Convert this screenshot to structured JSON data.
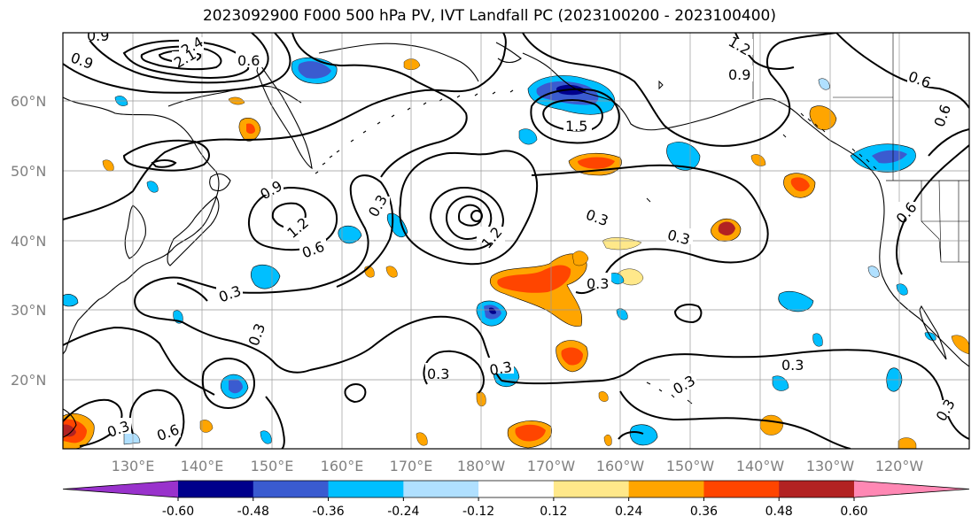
{
  "title": "2023092900 F000 500 hPa PV, IVT Landfall PC (2023100200 - 2023100400)",
  "lat_labels": [
    "60°N",
    "50°N",
    "40°N",
    "30°N",
    "20°N"
  ],
  "lon_labels": [
    "130°E",
    "140°E",
    "150°E",
    "160°E",
    "170°E",
    "180°W",
    "170°W",
    "160°W",
    "150°W",
    "140°W",
    "130°W",
    "120°W"
  ],
  "contour_labels": [
    "0.9",
    "2.4",
    "2.1",
    "1.2",
    "0.6",
    "0.9",
    "0.9",
    "1.2",
    "0.6",
    "0.3",
    "0.3",
    "0.3",
    "1.5",
    "0.3",
    "0.3",
    "0.3",
    "0.3",
    "0.3",
    "0.3",
    "0.3",
    "0.6",
    "0.3",
    "1.2",
    "0.9",
    "0.6",
    "0.6",
    "0.6",
    "0.3"
  ],
  "colorbar": {
    "ticks": [
      "-0.60",
      "-0.48",
      "-0.36",
      "-0.24",
      "-0.12",
      "0.12",
      "0.24",
      "0.36",
      "0.48",
      "0.60"
    ],
    "colors": [
      "#9932cc",
      "#00008b",
      "#3a5bd0",
      "#00bfff",
      "#b0e0ff",
      "#ffffff",
      "#ffe88a",
      "#ffa500",
      "#ff4500",
      "#b22222",
      "#ff88b4"
    ]
  },
  "fill_colors": {
    "blue_mid": "#3a5bd0",
    "blue_sky": "#00bfff",
    "blue_light": "#b0e0ff",
    "yellow": "#ffe88a",
    "orange": "#ffa500",
    "red_orange": "#ff4500",
    "dark_red": "#b22222"
  }
}
